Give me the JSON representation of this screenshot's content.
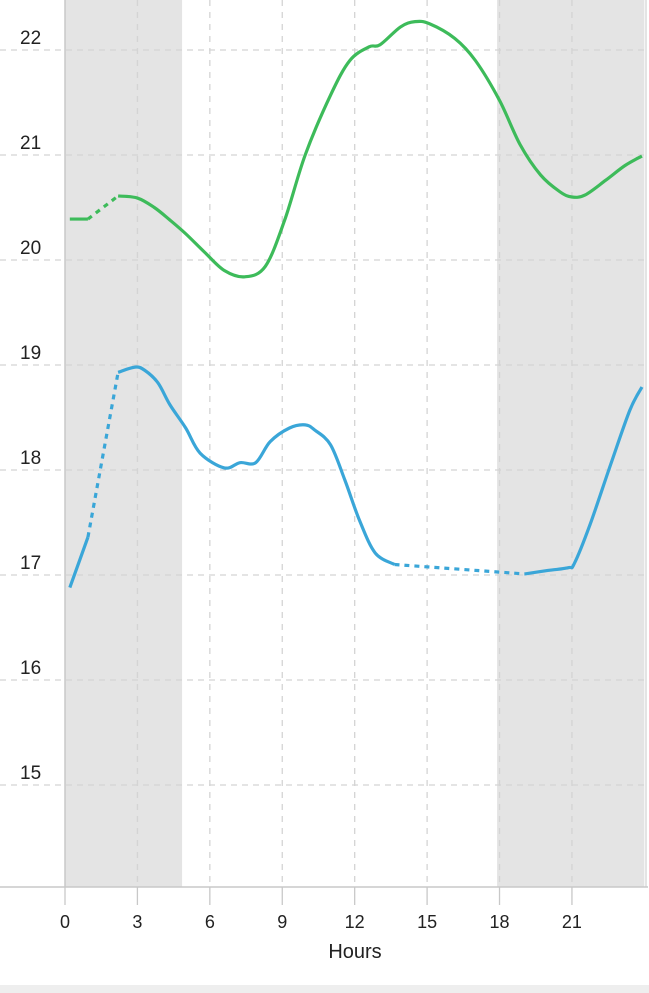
{
  "chart_data": {
    "type": "line",
    "title": "",
    "xlabel": "Hours",
    "ylabel": "",
    "xlim": [
      0,
      24
    ],
    "ylim": [
      14,
      22.48
    ],
    "xticks": [
      "0",
      "3",
      "6",
      "9",
      "12",
      "15",
      "18",
      "21"
    ],
    "yticks": [
      "15",
      "16",
      "17",
      "18",
      "19",
      "20",
      "21",
      "22"
    ],
    "grid": true,
    "shaded_ranges": [
      [
        0,
        4.85
      ],
      [
        17.9,
        24
      ]
    ],
    "colors": {
      "shade": "#e4e4e4",
      "grid": "#d4d4d4",
      "axis": "#c8c8c8"
    },
    "series": [
      {
        "color": "#3dbb5a",
        "segments": [
          {
            "style": "solid",
            "points": [
              [
                0.2,
                20.39
              ],
              [
                0.95,
                20.39
              ]
            ]
          },
          {
            "style": "dashed",
            "points": [
              [
                0.95,
                20.39
              ],
              [
                2.2,
                20.61
              ]
            ]
          },
          {
            "style": "solid",
            "points": [
              [
                2.2,
                20.61
              ],
              [
                3,
                20.59
              ],
              [
                3.7,
                20.5
              ],
              [
                4.35,
                20.38
              ],
              [
                5,
                20.25
              ],
              [
                5.8,
                20.07
              ],
              [
                6.6,
                19.9
              ],
              [
                7.45,
                19.84
              ],
              [
                8.3,
                19.94
              ],
              [
                9.1,
                20.38
              ],
              [
                9.95,
                21.0
              ],
              [
                11,
                21.57
              ],
              [
                11.8,
                21.9
              ],
              [
                12.6,
                22.03
              ],
              [
                13.05,
                22.05
              ],
              [
                13.9,
                22.22
              ],
              [
                14.5,
                22.27
              ],
              [
                15.1,
                22.25
              ],
              [
                16.15,
                22.11
              ],
              [
                17,
                21.9
              ],
              [
                18,
                21.52
              ],
              [
                18.85,
                21.1
              ],
              [
                19.7,
                20.81
              ],
              [
                20.5,
                20.65
              ],
              [
                21,
                20.6
              ],
              [
                21.55,
                20.62
              ],
              [
                22.4,
                20.76
              ],
              [
                23.2,
                20.9
              ],
              [
                23.9,
                20.99
              ]
            ]
          }
        ]
      },
      {
        "color": "#3aa6d8",
        "segments": [
          {
            "style": "solid",
            "points": [
              [
                0.2,
                16.88
              ],
              [
                0.95,
                17.36
              ]
            ]
          },
          {
            "style": "dashed",
            "points": [
              [
                0.95,
                17.36
              ],
              [
                2.2,
                18.93
              ]
            ]
          },
          {
            "style": "solid",
            "points": [
              [
                2.2,
                18.93
              ],
              [
                2.9,
                18.98
              ],
              [
                3.3,
                18.95
              ],
              [
                3.85,
                18.83
              ],
              [
                4.35,
                18.62
              ],
              [
                5,
                18.4
              ],
              [
                5.6,
                18.16
              ],
              [
                6.6,
                18.02
              ],
              [
                7.25,
                18.07
              ],
              [
                7.9,
                18.07
              ],
              [
                8.5,
                18.27
              ],
              [
                9.3,
                18.4
              ],
              [
                9.95,
                18.43
              ],
              [
                10.35,
                18.38
              ],
              [
                11,
                18.24
              ],
              [
                11.6,
                17.9
              ],
              [
                12.2,
                17.52
              ],
              [
                12.85,
                17.21
              ],
              [
                13.65,
                17.1
              ]
            ]
          },
          {
            "style": "dashed",
            "points": [
              [
                13.65,
                17.1
              ],
              [
                19.05,
                17.01
              ]
            ]
          },
          {
            "style": "solid",
            "points": [
              [
                19.05,
                17.01
              ],
              [
                19.9,
                17.04
              ],
              [
                20.85,
                17.07
              ],
              [
                21.1,
                17.11
              ],
              [
                21.75,
                17.48
              ],
              [
                22.6,
                18.05
              ],
              [
                23.4,
                18.57
              ],
              [
                23.9,
                18.79
              ]
            ]
          }
        ]
      }
    ]
  }
}
